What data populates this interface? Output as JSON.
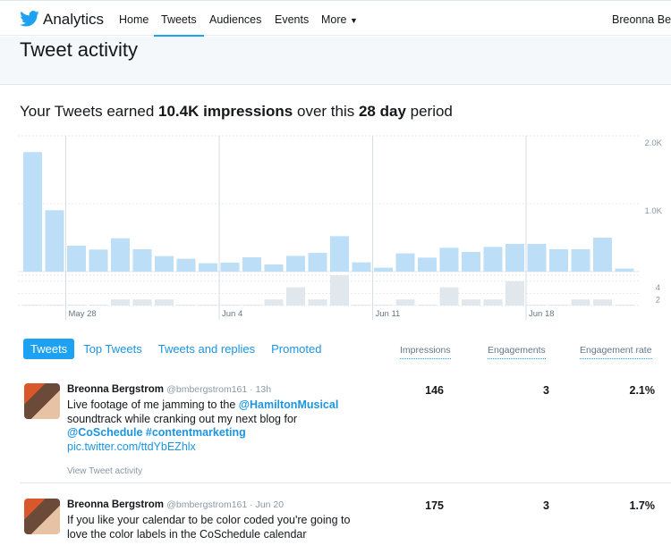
{
  "header": {
    "brand": "Analytics",
    "nav": [
      "Home",
      "Tweets",
      "Audiences",
      "Events",
      "More"
    ],
    "active": "Tweets",
    "user": "Breonna Ber",
    "accent": "#1da1f2"
  },
  "page_title": "Tweet activity",
  "summary": {
    "prefix": "Your Tweets earned ",
    "impressions": "10.4K impressions",
    "middle": " over this ",
    "period": "28 day",
    "suffix": " period"
  },
  "chart_data": [
    {
      "type": "bar",
      "title": "",
      "series": [
        {
          "values": [
            1760,
            904,
            382,
            325,
            491,
            329,
            228,
            189,
            123,
            132,
            211,
            105,
            232,
            276,
            522,
            136,
            57,
            268,
            206,
            351,
            289,
            364,
            408,
            408,
            329,
            329,
            500,
            44
          ]
        }
      ],
      "yticks": [
        "1.0K",
        "2.0K"
      ],
      "ylim": [
        0,
        2000
      ],
      "xticks": [
        "May 28",
        "Jun 4",
        "Jun 11",
        "Jun 18"
      ],
      "xtick_index": [
        2,
        9,
        16,
        23
      ],
      "color": "#bcdff7",
      "grid": true
    },
    {
      "type": "bar",
      "title": "",
      "series": [
        {
          "values": [
            0,
            0,
            0,
            0,
            1,
            1,
            1,
            0,
            0,
            0,
            0,
            1,
            3,
            1,
            5,
            0,
            0,
            1,
            0,
            3,
            1,
            1,
            4,
            0,
            0,
            1,
            1,
            0
          ]
        }
      ],
      "yticks": [
        "2",
        "4"
      ],
      "ylim": [
        0,
        5
      ],
      "color": "#e1e8ed",
      "grid": true
    }
  ],
  "tabs": [
    "Tweets",
    "Top Tweets",
    "Tweets and replies",
    "Promoted"
  ],
  "columns": [
    "Impressions",
    "Engagements",
    "Engagement rate"
  ],
  "tweets": [
    {
      "name": "Breonna Bergstrom",
      "handle": "@bmbergstrom161 · 13h",
      "t1": "Live footage of me jamming to the ",
      "m1": "@HamiltonMusical",
      "t2": " soundtrack while cranking out my next blog for ",
      "m2": "@CoSchedule #contentmarketing",
      "link": "pic.twitter.com/ttdYbEZhlx",
      "activity": "View Tweet activity",
      "impressions": "146",
      "engagements": "3",
      "rate": "2.1%"
    },
    {
      "name": "Breonna Bergstrom",
      "handle": "@bmbergstrom161 · Jun 20",
      "t1": "If you like your calendar to be color coded you're going to love the color labels in the CoSchedule calendar",
      "impressions": "175",
      "engagements": "3",
      "rate": "1.7%"
    }
  ]
}
